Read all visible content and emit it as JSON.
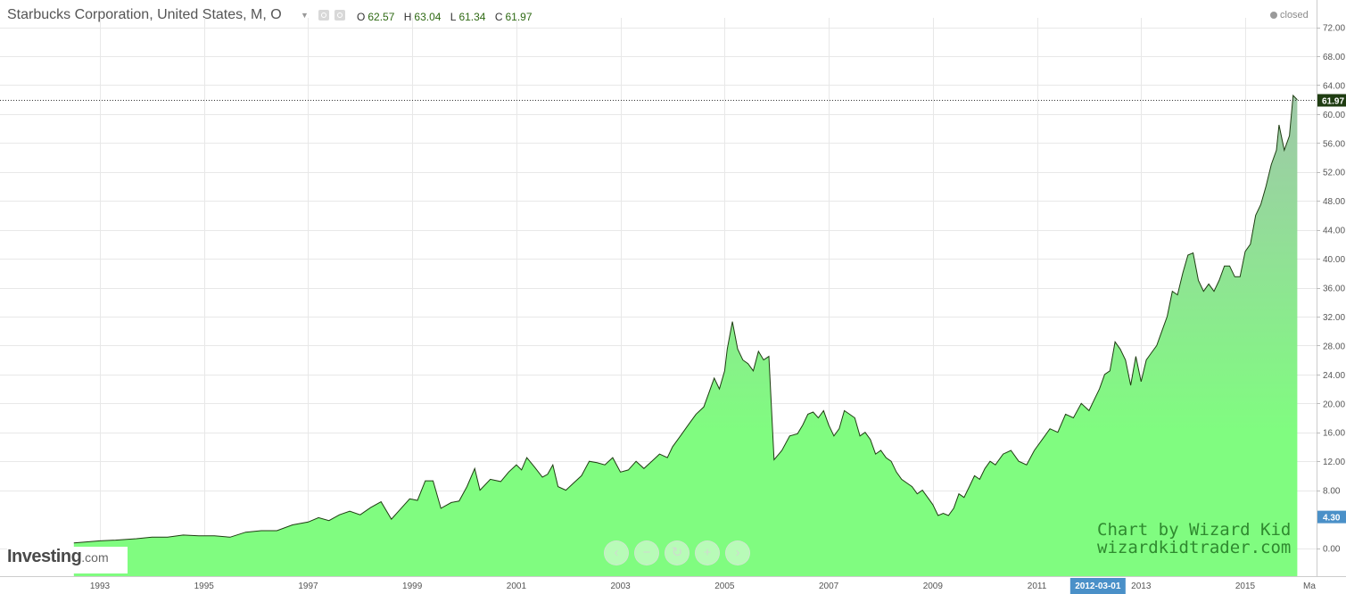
{
  "header": {
    "title": "Starbucks Corporation, United States, M, O",
    "ohlc": [
      {
        "k": "O",
        "v": "62.57"
      },
      {
        "k": "H",
        "v": "63.04"
      },
      {
        "k": "L",
        "v": "61.34"
      },
      {
        "k": "C",
        "v": "61.97"
      }
    ],
    "status": "closed"
  },
  "branding": {
    "logo_main": "Investing",
    "logo_suffix": ".com",
    "watermark_line1": "Chart by Wizard Kid",
    "watermark_line2": "wizardkidtrader.com"
  },
  "colors": {
    "line": "#1f3d12",
    "fill_bottom": "#80fc80",
    "fill_top": "#9fc8a8",
    "last_price_tag": "#1f3d12",
    "current_low_tag": "#4a90c8",
    "date_tag": "#4a90c8",
    "grid": "#e8e8e8"
  },
  "nav_icons": [
    "chevron-left-icon",
    "zoom-out-icon",
    "reset-icon",
    "zoom-in-icon",
    "chevron-right-icon"
  ],
  "chart_data": {
    "type": "area",
    "title": "Starbucks Corporation, United States, M, O",
    "xlabel": "",
    "ylabel": "",
    "xlim": [
      1992.0,
      2016.4
    ],
    "ylim": [
      -2,
      74
    ],
    "x_ticks": [
      "1993",
      "1995",
      "1997",
      "1999",
      "2001",
      "2003",
      "2005",
      "2007",
      "2009",
      "2011",
      "2013",
      "2015"
    ],
    "x_tick_positions": [
      1993,
      1995,
      1997,
      1999,
      2001,
      2003,
      2005,
      2007,
      2009,
      2011,
      2013,
      2015
    ],
    "x_edge_label": "Ma",
    "y_ticks": [
      "0.00",
      "4.30",
      "8.00",
      "12.00",
      "16.00",
      "20.00",
      "24.00",
      "28.00",
      "32.00",
      "36.00",
      "40.00",
      "44.00",
      "48.00",
      "52.00",
      "56.00",
      "60.00",
      "64.00",
      "68.00",
      "72.00"
    ],
    "y_tick_values": [
      0,
      4.3,
      8,
      12,
      16,
      20,
      24,
      28,
      32,
      36,
      40,
      44,
      48,
      52,
      56,
      60,
      64,
      68,
      72
    ],
    "last_price": 61.97,
    "last_price_label": "61.97",
    "marked_low": 4.3,
    "marked_low_label": "4.30",
    "crosshair_date": "2012-03-01",
    "crosshair_x": 2012.17,
    "grid": true,
    "series": [
      {
        "points": [
          [
            1992.5,
            0.7
          ],
          [
            1993.0,
            1.0
          ],
          [
            1993.3,
            1.1
          ],
          [
            1993.7,
            1.3
          ],
          [
            1994.0,
            1.5
          ],
          [
            1994.3,
            1.5
          ],
          [
            1994.6,
            1.8
          ],
          [
            1994.9,
            1.7
          ],
          [
            1995.2,
            1.7
          ],
          [
            1995.5,
            1.5
          ],
          [
            1995.8,
            2.2
          ],
          [
            1996.1,
            2.4
          ],
          [
            1996.4,
            2.4
          ],
          [
            1996.7,
            3.2
          ],
          [
            1997.0,
            3.6
          ],
          [
            1997.2,
            4.2
          ],
          [
            1997.4,
            3.8
          ],
          [
            1997.6,
            4.6
          ],
          [
            1997.8,
            5.1
          ],
          [
            1998.0,
            4.6
          ],
          [
            1998.2,
            5.6
          ],
          [
            1998.4,
            6.4
          ],
          [
            1998.6,
            4.0
          ],
          [
            1998.8,
            5.6
          ],
          [
            1998.95,
            6.8
          ],
          [
            1999.1,
            6.6
          ],
          [
            1999.25,
            9.3
          ],
          [
            1999.4,
            9.3
          ],
          [
            1999.55,
            5.5
          ],
          [
            1999.75,
            6.3
          ],
          [
            1999.9,
            6.5
          ],
          [
            2000.05,
            8.5
          ],
          [
            2000.2,
            11.0
          ],
          [
            2000.3,
            8.0
          ],
          [
            2000.5,
            9.5
          ],
          [
            2000.7,
            9.2
          ],
          [
            2000.85,
            10.5
          ],
          [
            2001.0,
            11.5
          ],
          [
            2001.1,
            10.8
          ],
          [
            2001.2,
            12.5
          ],
          [
            2001.35,
            11.2
          ],
          [
            2001.5,
            9.8
          ],
          [
            2001.6,
            10.2
          ],
          [
            2001.7,
            11.5
          ],
          [
            2001.8,
            8.5
          ],
          [
            2001.95,
            8.0
          ],
          [
            2002.1,
            9.0
          ],
          [
            2002.25,
            10.0
          ],
          [
            2002.4,
            12.0
          ],
          [
            2002.55,
            11.8
          ],
          [
            2002.7,
            11.5
          ],
          [
            2002.85,
            12.5
          ],
          [
            2003.0,
            10.5
          ],
          [
            2003.15,
            10.8
          ],
          [
            2003.3,
            12.0
          ],
          [
            2003.45,
            11.0
          ],
          [
            2003.6,
            12.0
          ],
          [
            2003.75,
            13.0
          ],
          [
            2003.9,
            12.5
          ],
          [
            2004.0,
            14.0
          ],
          [
            2004.15,
            15.5
          ],
          [
            2004.3,
            17.0
          ],
          [
            2004.45,
            18.5
          ],
          [
            2004.6,
            19.5
          ],
          [
            2004.7,
            21.5
          ],
          [
            2004.8,
            23.5
          ],
          [
            2004.9,
            22.0
          ],
          [
            2005.0,
            24.5
          ],
          [
            2005.05,
            27.5
          ],
          [
            2005.15,
            31.3
          ],
          [
            2005.25,
            27.5
          ],
          [
            2005.35,
            26.0
          ],
          [
            2005.45,
            25.5
          ],
          [
            2005.55,
            24.5
          ],
          [
            2005.65,
            27.2
          ],
          [
            2005.75,
            26.0
          ],
          [
            2005.85,
            26.5
          ],
          [
            2005.95,
            12.2
          ],
          [
            2006.1,
            13.5
          ],
          [
            2006.25,
            15.5
          ],
          [
            2006.4,
            15.8
          ],
          [
            2006.5,
            17.0
          ],
          [
            2006.6,
            18.5
          ],
          [
            2006.7,
            18.8
          ],
          [
            2006.8,
            18.0
          ],
          [
            2006.9,
            19.0
          ],
          [
            2007.0,
            17.0
          ],
          [
            2007.1,
            15.5
          ],
          [
            2007.2,
            16.5
          ],
          [
            2007.3,
            19.0
          ],
          [
            2007.4,
            18.5
          ],
          [
            2007.5,
            18.0
          ],
          [
            2007.6,
            15.5
          ],
          [
            2007.7,
            16.0
          ],
          [
            2007.8,
            15.0
          ],
          [
            2007.9,
            13.0
          ],
          [
            2008.0,
            13.5
          ],
          [
            2008.1,
            12.5
          ],
          [
            2008.2,
            12.0
          ],
          [
            2008.3,
            10.5
          ],
          [
            2008.4,
            9.5
          ],
          [
            2008.5,
            9.0
          ],
          [
            2008.6,
            8.5
          ],
          [
            2008.7,
            7.5
          ],
          [
            2008.8,
            8.0
          ],
          [
            2008.9,
            7.0
          ],
          [
            2009.0,
            6.0
          ],
          [
            2009.1,
            4.5
          ],
          [
            2009.2,
            4.8
          ],
          [
            2009.3,
            4.5
          ],
          [
            2009.4,
            5.5
          ],
          [
            2009.5,
            7.5
          ],
          [
            2009.6,
            7.0
          ],
          [
            2009.7,
            8.5
          ],
          [
            2009.8,
            10.0
          ],
          [
            2009.9,
            9.5
          ],
          [
            2010.0,
            11.0
          ],
          [
            2010.1,
            12.0
          ],
          [
            2010.2,
            11.5
          ],
          [
            2010.35,
            13.0
          ],
          [
            2010.5,
            13.5
          ],
          [
            2010.65,
            12.0
          ],
          [
            2010.8,
            11.5
          ],
          [
            2010.95,
            13.5
          ],
          [
            2011.1,
            15.0
          ],
          [
            2011.25,
            16.5
          ],
          [
            2011.4,
            16.0
          ],
          [
            2011.55,
            18.5
          ],
          [
            2011.7,
            18.0
          ],
          [
            2011.85,
            20.0
          ],
          [
            2012.0,
            19.0
          ],
          [
            2012.1,
            20.5
          ],
          [
            2012.2,
            22.0
          ],
          [
            2012.3,
            24.0
          ],
          [
            2012.4,
            24.5
          ],
          [
            2012.5,
            28.5
          ],
          [
            2012.6,
            27.5
          ],
          [
            2012.7,
            26.0
          ],
          [
            2012.8,
            22.5
          ],
          [
            2012.9,
            26.5
          ],
          [
            2013.0,
            23.0
          ],
          [
            2013.1,
            26.0
          ],
          [
            2013.2,
            27.0
          ],
          [
            2013.3,
            28.0
          ],
          [
            2013.4,
            30.0
          ],
          [
            2013.5,
            32.0
          ],
          [
            2013.6,
            35.5
          ],
          [
            2013.7,
            35.0
          ],
          [
            2013.8,
            38.0
          ],
          [
            2013.9,
            40.5
          ],
          [
            2014.0,
            40.8
          ],
          [
            2014.1,
            37.0
          ],
          [
            2014.2,
            35.5
          ],
          [
            2014.3,
            36.5
          ],
          [
            2014.4,
            35.5
          ],
          [
            2014.5,
            37.0
          ],
          [
            2014.6,
            39.0
          ],
          [
            2014.7,
            39.0
          ],
          [
            2014.8,
            37.5
          ],
          [
            2014.9,
            37.5
          ],
          [
            2015.0,
            41.0
          ],
          [
            2015.1,
            42.0
          ],
          [
            2015.2,
            46.0
          ],
          [
            2015.3,
            47.5
          ],
          [
            2015.4,
            50.0
          ],
          [
            2015.5,
            53.0
          ],
          [
            2015.6,
            55.0
          ],
          [
            2015.65,
            58.5
          ],
          [
            2015.75,
            55.0
          ],
          [
            2015.85,
            57.0
          ],
          [
            2015.92,
            62.57
          ],
          [
            2016.0,
            61.97
          ]
        ]
      }
    ]
  }
}
